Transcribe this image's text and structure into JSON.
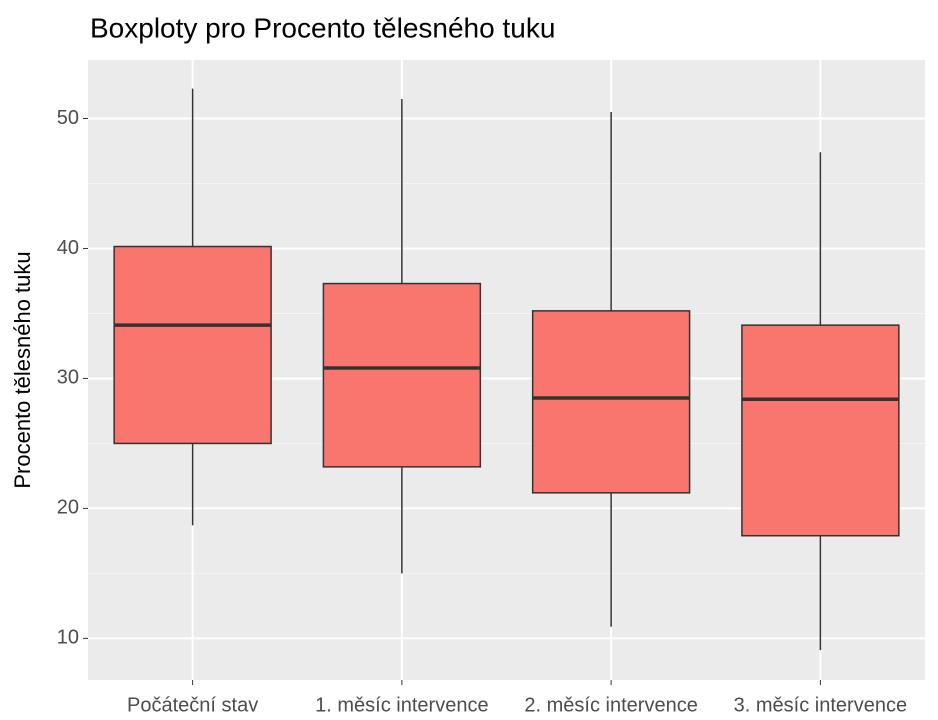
{
  "chart_data": {
    "type": "box",
    "title": "Boxploty pro Procento tělesného tuku",
    "ylabel": "Procento tělesného tuku",
    "categories": [
      "Počáteční stav",
      "1. měsíc intervence",
      "2. měsíc intervence",
      "3. měsíc intervence"
    ],
    "min": [
      18.7,
      15.0,
      10.9,
      9.1
    ],
    "q1": [
      25.0,
      23.2,
      21.2,
      17.9
    ],
    "median": [
      34.1,
      30.8,
      28.5,
      28.4
    ],
    "q3": [
      40.15,
      37.3,
      35.2,
      34.1
    ],
    "max": [
      52.3,
      51.5,
      50.5,
      47.4
    ],
    "color": "#f8766d",
    "ylim": [
      6.8,
      54.5
    ],
    "yticks": [
      10,
      20,
      30,
      40,
      50
    ],
    "yminorticks": [
      15,
      25,
      35,
      45
    ],
    "grid": true
  }
}
